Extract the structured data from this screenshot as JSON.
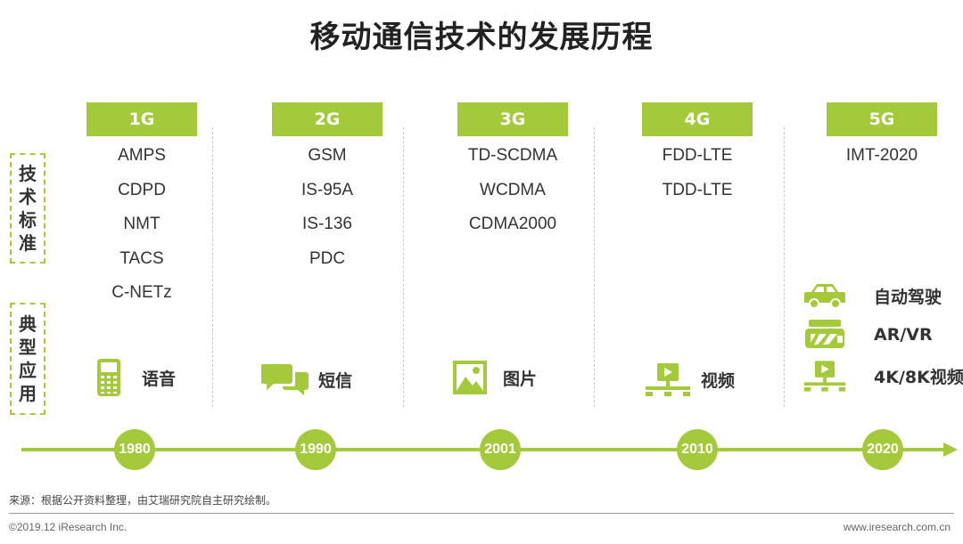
{
  "title": "移动通信技术的发展历程",
  "side_labels": {
    "standards": [
      "技",
      "术",
      "标",
      "准"
    ],
    "applications": [
      "典",
      "型",
      "应",
      "用"
    ]
  },
  "generations": [
    {
      "name": "1G",
      "standards": [
        "AMPS",
        "CDPD",
        "NMT",
        "TACS",
        "C-NETz"
      ],
      "year": "1980"
    },
    {
      "name": "2G",
      "standards": [
        "GSM",
        "IS-95A",
        "IS-136",
        "PDC"
      ],
      "year": "1990"
    },
    {
      "name": "3G",
      "standards": [
        "TD-SCDMA",
        "WCDMA",
        "CDMA2000"
      ],
      "year": "2001"
    },
    {
      "name": "4G",
      "standards": [
        "FDD-LTE",
        "TDD-LTE"
      ],
      "year": "2010"
    },
    {
      "name": "5G",
      "standards": [
        "IMT-2020"
      ],
      "year": "2020"
    }
  ],
  "applications": {
    "g1": {
      "label": "语音",
      "icon": "mobile-phone-icon"
    },
    "g2": {
      "label": "短信",
      "icon": "chat-bubbles-icon"
    },
    "g3": {
      "label": "图片",
      "icon": "picture-icon"
    },
    "g4": {
      "label": "视频",
      "icon": "video-play-icon"
    },
    "g5": [
      {
        "label": "自动驾驶",
        "icon": "car-icon"
      },
      {
        "label": "AR/VR",
        "icon": "vr-headset-icon"
      },
      {
        "label": "4K/8K视频",
        "icon": "video-play-icon"
      }
    ]
  },
  "source": "来源：根据公开资料整理，由艾瑞研究院自主研究绘制。",
  "copyright": "©2019.12 iResearch Inc.",
  "website": "www.iresearch.com.cn",
  "colors": {
    "accent": "#a4c93a",
    "text": "#333333"
  }
}
